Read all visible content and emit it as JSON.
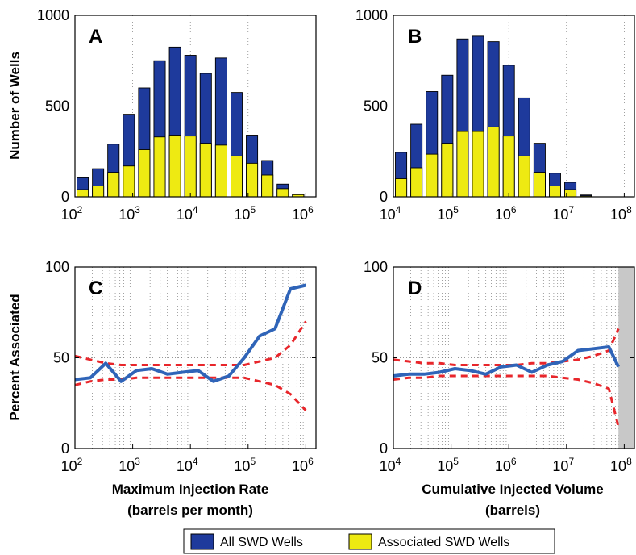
{
  "chart_data": [
    {
      "panel": "A",
      "type": "bar",
      "ylabel": "Number of Wells",
      "xlabel": "",
      "x_scale": "log",
      "xlim": [
        100,
        1500000
      ],
      "ylim": [
        0,
        1000
      ],
      "xticks": [
        100,
        1000,
        10000,
        100000,
        1000000
      ],
      "yticks": [
        0,
        500,
        1000
      ],
      "bin_edges_log10": [
        2.0,
        2.267,
        2.533,
        2.8,
        3.067,
        3.333,
        3.6,
        3.867,
        4.133,
        4.4,
        4.667,
        4.933,
        5.2,
        5.467,
        5.733,
        6.0
      ],
      "series": [
        {
          "name": "All SWD Wells",
          "values": [
            105,
            155,
            290,
            455,
            600,
            750,
            825,
            780,
            680,
            765,
            575,
            340,
            200,
            70,
            12
          ]
        },
        {
          "name": "Associated SWD Wells",
          "values": [
            40,
            60,
            135,
            170,
            260,
            330,
            340,
            335,
            295,
            285,
            225,
            185,
            120,
            45,
            12
          ]
        }
      ]
    },
    {
      "panel": "B",
      "type": "bar",
      "ylabel": "",
      "xlabel": "",
      "x_scale": "log",
      "xlim": [
        10000,
        150000000
      ],
      "ylim": [
        0,
        1000
      ],
      "xticks": [
        10000,
        100000,
        1000000,
        10000000,
        100000000
      ],
      "yticks": [
        0,
        500,
        1000
      ],
      "bin_edges_log10": [
        4.0,
        4.267,
        4.533,
        4.8,
        5.067,
        5.333,
        5.6,
        5.867,
        6.133,
        6.4,
        6.667,
        6.933,
        7.2,
        7.467,
        7.733,
        8.0
      ],
      "series": [
        {
          "name": "All SWD Wells",
          "values": [
            245,
            400,
            580,
            670,
            870,
            885,
            855,
            725,
            545,
            295,
            130,
            80,
            10,
            0,
            0
          ]
        },
        {
          "name": "Associated SWD Wells",
          "values": [
            100,
            160,
            235,
            295,
            360,
            360,
            385,
            335,
            225,
            135,
            60,
            40,
            5,
            0,
            0
          ]
        }
      ]
    },
    {
      "panel": "C",
      "type": "line",
      "ylabel": "Percent Associated",
      "xlabel": "Maximum Injection Rate",
      "xlabel_line2": "(barrels per month)",
      "x_scale": "log",
      "xlim": [
        100,
        1500000
      ],
      "ylim": [
        0,
        100
      ],
      "xticks": [
        100,
        1000,
        10000,
        100000,
        1000000
      ],
      "yticks": [
        0,
        50,
        100
      ],
      "x_log10": [
        2.0,
        2.267,
        2.533,
        2.8,
        3.067,
        3.333,
        3.6,
        3.867,
        4.133,
        4.4,
        4.667,
        4.933,
        5.2,
        5.467,
        5.733,
        6.0
      ],
      "series": [
        {
          "values": [
            38,
            39,
            47,
            37,
            43,
            44,
            41,
            42,
            43,
            37,
            40,
            50,
            62,
            66,
            88,
            90
          ]
        },
        {
          "values": [
            51,
            49,
            47,
            46,
            46,
            46,
            46,
            46,
            46,
            46,
            46,
            46,
            48,
            50,
            57,
            70
          ]
        },
        {
          "values": [
            35,
            37,
            38,
            38,
            39,
            39,
            39,
            39,
            39,
            39,
            39,
            39,
            37,
            35,
            30,
            21
          ]
        }
      ]
    },
    {
      "panel": "D",
      "type": "line",
      "ylabel": "",
      "xlabel": "Cumulative Injected Volume",
      "xlabel_line2": "(barrels)",
      "x_scale": "log",
      "xlim": [
        10000,
        150000000
      ],
      "ylim": [
        0,
        100
      ],
      "xticks": [
        10000,
        100000,
        1000000,
        10000000,
        100000000
      ],
      "yticks": [
        0,
        50,
        100
      ],
      "shaded_x_log10": [
        7.9,
        8.18
      ],
      "x_log10": [
        4.0,
        4.267,
        4.533,
        4.8,
        5.067,
        5.333,
        5.6,
        5.867,
        6.133,
        6.4,
        6.667,
        6.933,
        7.2,
        7.467,
        7.733,
        7.9
      ],
      "series": [
        {
          "values": [
            40,
            41,
            41,
            42,
            44,
            43,
            41,
            45,
            46,
            42,
            46,
            48,
            54,
            55,
            56,
            45
          ]
        },
        {
          "values": [
            49,
            48,
            47,
            47,
            46,
            46,
            46,
            46,
            46,
            47,
            47,
            48,
            49,
            51,
            54,
            66
          ]
        },
        {
          "values": [
            38,
            39,
            39,
            40,
            40,
            40,
            40,
            40,
            40,
            40,
            40,
            39,
            38,
            36,
            33,
            12
          ]
        }
      ]
    }
  ],
  "panel_letters": [
    "A",
    "B",
    "C",
    "D"
  ],
  "axes": {
    "ylabel_top": "Number of Wells",
    "ylabel_bottom": "Percent Associated",
    "xlabel_c_line1": "Maximum Injection Rate",
    "xlabel_c_line2": "(barrels per month)",
    "xlabel_d_line1": "Cumulative Injected Volume",
    "xlabel_d_line2": "(barrels)"
  },
  "legend": {
    "items": [
      {
        "label": "All SWD Wells",
        "color": "#1e3a9c"
      },
      {
        "label": "Associated SWD Wells",
        "color": "#eeea12"
      }
    ]
  },
  "colors": {
    "all_bar": "#1e3a9c",
    "assoc_bar": "#eeea12",
    "line_main": "#2f64b8",
    "line_bounds": "#e8262b",
    "shade": "#c8c8c8"
  }
}
